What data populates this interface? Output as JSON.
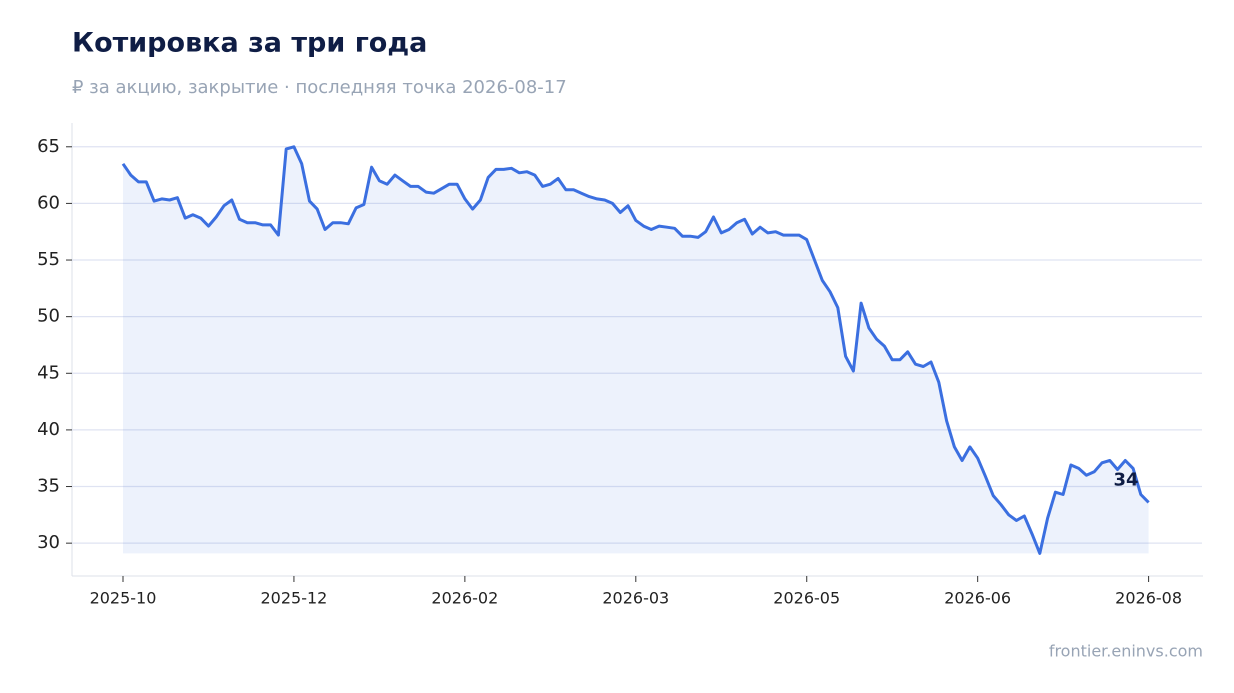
{
  "chart_data": {
    "type": "line",
    "title": "Котировка за три года",
    "subtitle": "₽ за акцию, закрытие · последняя точка 2026-08-17",
    "source": "frontier.eninvs.com",
    "categories": [
      "2025-10",
      null,
      null,
      null,
      null,
      null,
      null,
      null,
      null,
      null,
      null,
      null,
      null,
      null,
      null,
      null,
      null,
      null,
      null,
      null,
      null,
      null,
      "2025-12",
      null,
      null,
      null,
      null,
      null,
      null,
      null,
      null,
      null,
      null,
      null,
      null,
      null,
      null,
      null,
      null,
      null,
      null,
      null,
      null,
      null,
      "2026-02",
      null,
      null,
      null,
      null,
      null,
      null,
      null,
      null,
      null,
      null,
      null,
      null,
      null,
      null,
      null,
      null,
      null,
      null,
      null,
      null,
      null,
      "2026-03",
      null,
      null,
      null,
      null,
      null,
      null,
      null,
      null,
      null,
      null,
      null,
      null,
      null,
      null,
      null,
      null,
      null,
      null,
      null,
      null,
      null,
      "2026-05",
      null,
      null,
      null,
      null,
      null,
      null,
      null,
      null,
      null,
      null,
      null,
      null,
      null,
      null,
      null,
      null,
      null,
      null,
      null,
      null,
      null,
      "2026-06",
      null,
      null,
      null,
      null,
      null,
      null,
      null,
      null,
      null,
      null,
      null,
      null,
      null,
      null,
      null,
      null,
      null,
      null,
      null,
      null,
      null,
      "2026-08"
    ],
    "series": [
      {
        "color": "#3b6fe0",
        "values": [
          63.5,
          62.5,
          61.9,
          61.9,
          60.2,
          60.4,
          60.3,
          60.5,
          58.7,
          59.0,
          58.7,
          58.0,
          58.8,
          59.8,
          60.3,
          58.6,
          58.3,
          58.3,
          58.1,
          58.1,
          57.2,
          64.8,
          65.0,
          63.5,
          60.2,
          59.5,
          57.7,
          58.3,
          58.3,
          58.2,
          59.6,
          59.9,
          63.2,
          62.0,
          61.7,
          62.5,
          62.0,
          61.5,
          61.5,
          61.0,
          60.9,
          61.3,
          61.7,
          61.7,
          60.4,
          59.5,
          60.3,
          62.3,
          63.0,
          63.0,
          63.1,
          62.7,
          62.8,
          62.5,
          61.5,
          61.7,
          62.2,
          61.2,
          61.2,
          60.9,
          60.6,
          60.4,
          60.3,
          60.0,
          59.2,
          59.8,
          58.5,
          58.0,
          57.7,
          58.0,
          57.9,
          57.8,
          57.1,
          57.1,
          57.0,
          57.5,
          58.8,
          57.4,
          57.7,
          58.3,
          58.6,
          57.3,
          57.9,
          57.4,
          57.5,
          57.2,
          57.2,
          57.2,
          56.8,
          55.0,
          53.2,
          52.2,
          50.8,
          46.5,
          45.2,
          51.2,
          49.0,
          48.0,
          47.4,
          46.2,
          46.2,
          46.9,
          45.8,
          45.6,
          46.0,
          44.2,
          40.8,
          38.5,
          37.3,
          38.5,
          37.5,
          35.9,
          34.2,
          33.4,
          32.5,
          32.0,
          32.4,
          30.8,
          29.1,
          32.2,
          34.5,
          34.3,
          36.9,
          36.6,
          36.0,
          36.3,
          37.1,
          37.3,
          36.5,
          37.3,
          36.6,
          34.3,
          33.6
        ],
        "value_labels": [
          null,
          null,
          null,
          null,
          null,
          null,
          null,
          null,
          null,
          null,
          null,
          null,
          null,
          null,
          null,
          null,
          null,
          null,
          null,
          null,
          null,
          null,
          null,
          null,
          null,
          null,
          null,
          null,
          null,
          null,
          null,
          null,
          null,
          null,
          null,
          null,
          null,
          null,
          null,
          null,
          null,
          null,
          null,
          null,
          null,
          null,
          null,
          null,
          null,
          null,
          null,
          null,
          null,
          null,
          null,
          null,
          null,
          null,
          null,
          null,
          null,
          null,
          null,
          null,
          null,
          null,
          null,
          null,
          null,
          null,
          null,
          null,
          null,
          null,
          null,
          null,
          null,
          null,
          null,
          null,
          null,
          null,
          null,
          null,
          null,
          null,
          null,
          null,
          null,
          null,
          null,
          null,
          null,
          null,
          null,
          null,
          null,
          null,
          null,
          null,
          null,
          null,
          null,
          null,
          null,
          null,
          null,
          null,
          null,
          null,
          null,
          null,
          null,
          null,
          null,
          null,
          null,
          null,
          null,
          null,
          null,
          null,
          null,
          null,
          null,
          null,
          null,
          null,
          null,
          null,
          null,
          null,
          "34"
        ]
      }
    ],
    "ylim": [
      27.1,
      67.1
    ],
    "yticks": [
      30,
      35,
      40,
      45,
      50,
      55,
      60,
      65
    ],
    "grid": true,
    "area_fill": true
  }
}
